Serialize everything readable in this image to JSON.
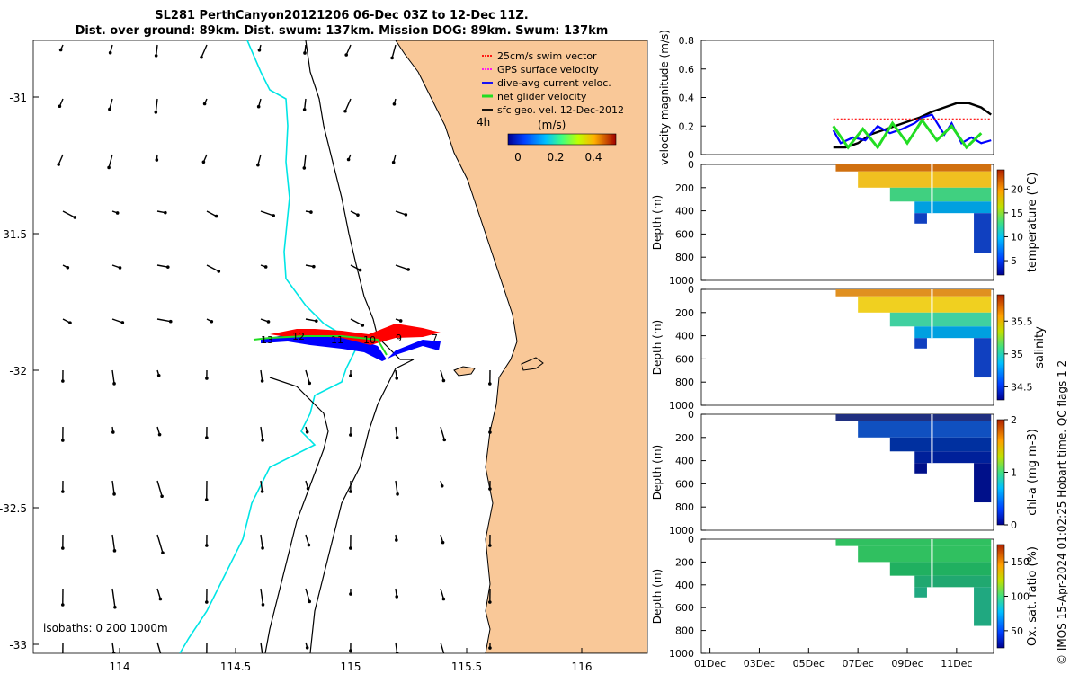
{
  "header": {
    "line1": "SL281 PerthCanyon20121206 06-Dec 03Z to 12-Dec 11Z.",
    "line2": "Dist. over ground: 89km. Dist. swum: 137km. Mission DOG: 89km. Swum: 137km"
  },
  "colors": {
    "land": "#f9c898",
    "isobath_0": "#00e5e5",
    "isobath_other": "#000000",
    "track_red": "#ff0000",
    "track_blue": "#0000ff",
    "track_green": "#22dd22"
  },
  "map": {
    "legend": [
      {
        "label": "25cm/s swim vector",
        "color": "#ff0000"
      },
      {
        "label": "GPS surface velocity",
        "color": "#ff00ff"
      },
      {
        "label": "dive-avg current veloc.",
        "color": "#0000ff"
      },
      {
        "label": "net glider velocity",
        "color": "#22dd22"
      },
      {
        "label": "sfc geo. vel. 12-Dec-2012",
        "color": "#000000"
      }
    ],
    "scale_label": "4h",
    "colorbar_title": "(m/s)",
    "colorbar_ticks": [
      "0",
      "0.2",
      "0.4"
    ],
    "isobath_text": "isobaths: 0   200  1000m",
    "x_ticks": [
      "114",
      "114.5",
      "115",
      "115.5",
      "116"
    ],
    "y_ticks": [
      "-31",
      "-31.5",
      "-32",
      "-32.5",
      "-33"
    ],
    "track_labels": [
      "13",
      "12",
      "11",
      "10",
      "9",
      "7"
    ]
  },
  "chart_data": [
    {
      "type": "line",
      "ylabel": "velocity magnitude (m/s)",
      "ylim": [
        0,
        0.8
      ],
      "y_ticks": [
        "0.8",
        "0.6",
        "0.4",
        "0.2",
        "0"
      ],
      "series": [
        {
          "name": "sfc geo. vel. 12-Dec-2012",
          "x": [
            6.0,
            6.5,
            7.0,
            7.5,
            8.0,
            8.5,
            9.0,
            9.5,
            10.0,
            10.5,
            11.0,
            11.5,
            12.0,
            12.4
          ],
          "values": [
            0.05,
            0.05,
            0.08,
            0.14,
            0.17,
            0.2,
            0.23,
            0.26,
            0.3,
            0.33,
            0.36,
            0.36,
            0.33,
            0.28
          ]
        },
        {
          "name": "dive-avg current veloc.",
          "x": [
            6.0,
            6.3,
            6.8,
            7.3,
            7.8,
            8.3,
            8.8,
            9.3,
            9.6,
            10.0,
            10.5,
            10.8,
            11.2,
            11.6,
            12.0,
            12.4
          ],
          "values": [
            0.17,
            0.08,
            0.12,
            0.1,
            0.2,
            0.15,
            0.18,
            0.22,
            0.26,
            0.28,
            0.14,
            0.22,
            0.08,
            0.12,
            0.08,
            0.1
          ]
        },
        {
          "name": "25cm/s swim vector",
          "x": [
            6.0,
            12.4
          ],
          "values": [
            0.25,
            0.25
          ]
        },
        {
          "name": "net glider velocity",
          "x": [
            6.0,
            6.6,
            7.2,
            7.8,
            8.4,
            9.0,
            9.6,
            10.2,
            10.8,
            11.4,
            12.0
          ],
          "values": [
            0.2,
            0.05,
            0.18,
            0.05,
            0.22,
            0.08,
            0.24,
            0.1,
            0.2,
            0.05,
            0.15
          ]
        }
      ]
    },
    {
      "type": "heatmap",
      "ylabel": "Depth (m)",
      "y_ticks": [
        "0",
        "200",
        "400",
        "600",
        "800",
        "1000"
      ],
      "cbar_label": "temperature (°C)",
      "cbar_ticks": [
        "20",
        "15",
        "10",
        "5"
      ],
      "cbar_range": [
        2,
        24
      ]
    },
    {
      "type": "heatmap",
      "ylabel": "Depth (m)",
      "y_ticks": [
        "0",
        "200",
        "400",
        "600",
        "800",
        "1000"
      ],
      "cbar_label": "salinity",
      "cbar_ticks": [
        "35.5",
        "35",
        "34.5"
      ],
      "cbar_range": [
        34.3,
        35.9
      ]
    },
    {
      "type": "heatmap",
      "ylabel": "Depth (m)",
      "y_ticks": [
        "0",
        "200",
        "400",
        "600",
        "800",
        "1000"
      ],
      "cbar_label": "chl-a (mg m-3)",
      "cbar_ticks": [
        "2",
        "1",
        "0"
      ],
      "cbar_range": [
        0,
        2
      ]
    },
    {
      "type": "heatmap",
      "ylabel": "Depth (m)",
      "y_ticks": [
        "0",
        "200",
        "400",
        "600",
        "800",
        "1000"
      ],
      "cbar_label": "Ox. sat. ratio (%)",
      "cbar_ticks": [
        "150",
        "100",
        "50"
      ],
      "cbar_range": [
        25,
        175
      ]
    }
  ],
  "time_axis": {
    "ticks": [
      "01Dec",
      "03Dec",
      "05Dec",
      "07Dec",
      "09Dec",
      "11Dec"
    ]
  },
  "footer": {
    "right_text": "© IMOS 15-Apr-2024 01:02:25 Hobart time. QC flags 1  2"
  }
}
